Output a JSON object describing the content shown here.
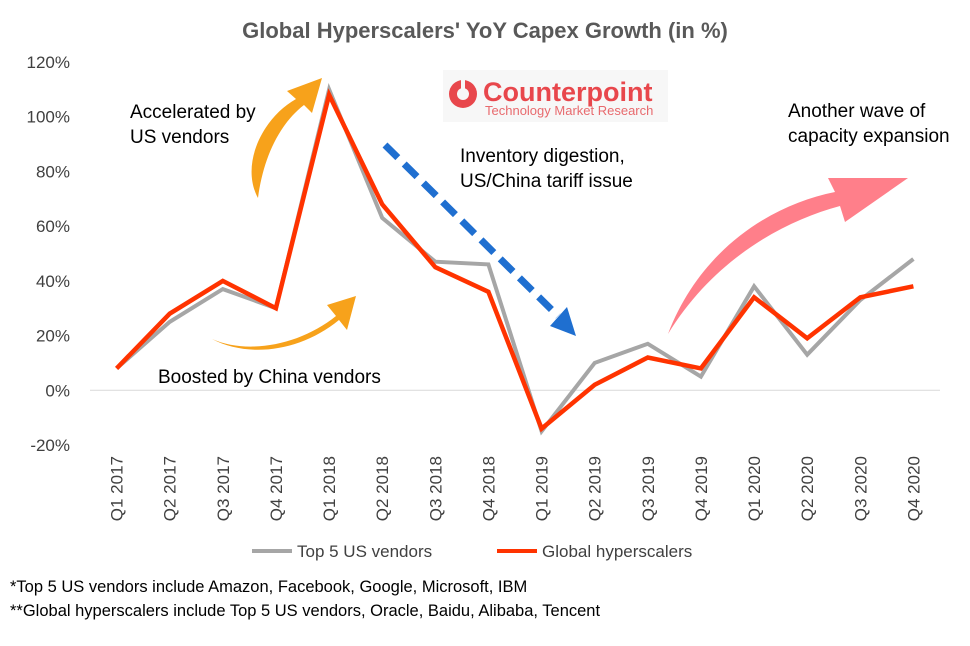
{
  "chart_data": {
    "type": "line",
    "title": "Global Hyperscalers' YoY Capex Growth (in %)",
    "categories": [
      "Q1 2017",
      "Q2 2017",
      "Q3 2017",
      "Q4 2017",
      "Q1 2018",
      "Q2 2018",
      "Q3 2018",
      "Q4 2018",
      "Q1 2019",
      "Q2 2019",
      "Q3 2019",
      "Q4 2019",
      "Q1 2020",
      "Q2 2020",
      "Q3 2020",
      "Q4 2020"
    ],
    "series": [
      {
        "name": "Top 5 US vendors",
        "color": "#a6a6a6",
        "values": [
          8,
          25,
          37,
          30,
          110,
          63,
          47,
          46,
          -15,
          10,
          17,
          5,
          38,
          13,
          33,
          48
        ]
      },
      {
        "name": "Global hyperscalers",
        "color": "#ff3300",
        "values": [
          8,
          28,
          40,
          30,
          108,
          68,
          45,
          36,
          -14,
          2,
          12,
          8,
          34,
          19,
          34,
          38
        ]
      }
    ],
    "ylim": [
      -20,
      120
    ],
    "yticks": [
      -20,
      0,
      20,
      40,
      60,
      80,
      100,
      120
    ],
    "ytick_labels": [
      "-20%",
      "0%",
      "20%",
      "40%",
      "60%",
      "80%",
      "100%",
      "120%"
    ],
    "xlabel": "",
    "ylabel": "",
    "grid": false,
    "legend": "bottom",
    "annotations": [
      {
        "id": "accel",
        "lines": [
          "Accelerated by",
          "US vendors"
        ]
      },
      {
        "id": "boost",
        "lines": [
          "Boosted by China vendors"
        ]
      },
      {
        "id": "inventory",
        "lines": [
          "Inventory digestion,",
          "US/China tariff issue"
        ]
      },
      {
        "id": "wave",
        "lines": [
          "Another wave of",
          "capacity expansion"
        ]
      }
    ]
  },
  "logo": {
    "name": "Counterpoint",
    "tagline": "Technology Market Research",
    "color": "#e8474c"
  },
  "arrow_colors": {
    "orange": "#f7a21b",
    "blue": "#1f6fd0",
    "pink": "#ff7f8a"
  },
  "footnotes": [
    "*Top 5 US vendors include Amazon, Facebook, Google, Microsoft, IBM",
    "**Global hyperscalers include Top 5 US vendors, Oracle, Baidu, Alibaba, Tencent"
  ]
}
